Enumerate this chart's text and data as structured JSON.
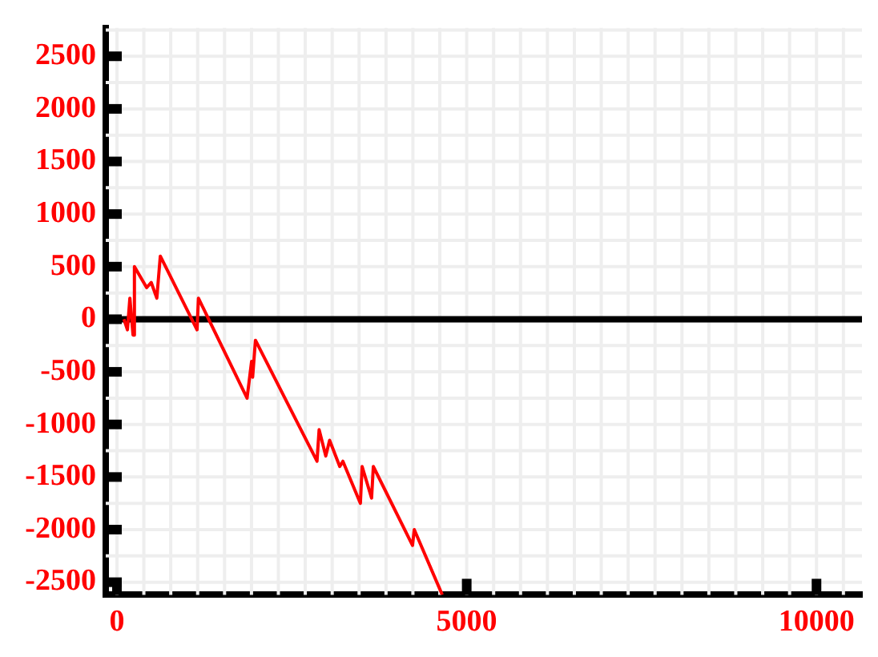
{
  "chart_data": {
    "type": "line",
    "x": [
      100,
      150,
      185,
      230,
      250,
      425,
      490,
      570,
      620,
      1145,
      1165,
      1860,
      1925,
      1940,
      1980,
      2860,
      2890,
      2985,
      3040,
      3185,
      3230,
      3480,
      3505,
      3640,
      3665,
      4225,
      4250,
      4650
    ],
    "series": [
      {
        "color": "#ff0000",
        "values": [
          0,
          -100,
          200,
          -150,
          500,
          300,
          350,
          200,
          600,
          -100,
          200,
          -750,
          -400,
          -550,
          -200,
          -1350,
          -1050,
          -1300,
          -1150,
          -1400,
          -1350,
          -1750,
          -1400,
          -1700,
          -1400,
          -2150,
          -2000,
          -2620
        ]
      }
    ],
    "xlim": [
      -160,
      10650
    ],
    "xticks": [
      0,
      5000,
      10000
    ],
    "ylim": [
      -2620,
      2770
    ],
    "yticks": [
      -2500,
      -2000,
      -1500,
      -1000,
      -500,
      0,
      500,
      1000,
      1500,
      2000,
      2500
    ],
    "ref_lines": [
      {
        "axis": "y",
        "value": 0,
        "color": "#000000"
      }
    ],
    "grid": true,
    "legend": false,
    "marker": "none",
    "line_style": "solid"
  }
}
